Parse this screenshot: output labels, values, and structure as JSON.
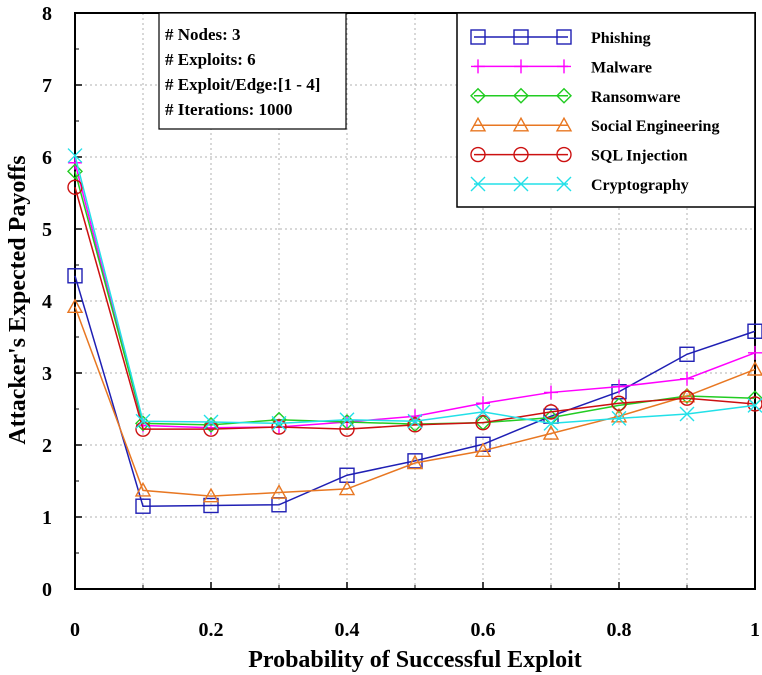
{
  "chart_data": {
    "type": "line",
    "xlabel": "Probability of Successful Exploit",
    "ylabel": "Attacker's Expected Payoffs",
    "xlim": [
      0,
      1
    ],
    "ylim": [
      0,
      8
    ],
    "x": [
      0,
      0.1,
      0.2,
      0.3,
      0.4,
      0.5,
      0.6,
      0.7,
      0.8,
      0.9,
      1.0
    ],
    "x_ticks": [
      0,
      0.2,
      0.4,
      0.6,
      0.8,
      1
    ],
    "x_tick_labels": [
      "0",
      "0.2",
      "0.4",
      "0.6",
      "0.8",
      "1"
    ],
    "y_ticks": [
      0,
      1,
      2,
      3,
      4,
      5,
      6,
      7,
      8
    ],
    "y_tick_labels": [
      "0",
      "1",
      "2",
      "3",
      "4",
      "5",
      "6",
      "7",
      "8"
    ],
    "grid": true,
    "legend_position": "top-right",
    "annotation_lines": [
      "# Nodes: 3",
      "# Exploits: 6",
      "# Exploit/Edge:[1 - 4]",
      "# Iterations: 1000"
    ],
    "series": [
      {
        "name": "Phishing",
        "color": "#1f1fb4",
        "marker": "square",
        "values": [
          4.35,
          1.15,
          1.16,
          1.17,
          1.58,
          1.78,
          2.01,
          2.4,
          2.74,
          3.26,
          3.58
        ]
      },
      {
        "name": "Malware",
        "color": "#ff00ff",
        "marker": "plus",
        "values": [
          5.92,
          2.27,
          2.24,
          2.25,
          2.32,
          2.4,
          2.58,
          2.73,
          2.81,
          2.92,
          3.28
        ]
      },
      {
        "name": "Ransomware",
        "color": "#22cc22",
        "marker": "diamond",
        "values": [
          5.8,
          2.3,
          2.28,
          2.35,
          2.32,
          2.29,
          2.31,
          2.38,
          2.55,
          2.68,
          2.65
        ]
      },
      {
        "name": "Social Engineering",
        "color": "#e87722",
        "marker": "triangle",
        "values": [
          3.92,
          1.37,
          1.29,
          1.34,
          1.39,
          1.75,
          1.92,
          2.16,
          2.4,
          2.68,
          3.05
        ]
      },
      {
        "name": "SQL Injection",
        "color": "#cc1010",
        "marker": "circle",
        "values": [
          5.58,
          2.22,
          2.22,
          2.25,
          2.22,
          2.28,
          2.31,
          2.46,
          2.58,
          2.65,
          2.57
        ]
      },
      {
        "name": "Cryptography",
        "color": "#22e0e8",
        "marker": "x",
        "values": [
          6.02,
          2.33,
          2.32,
          2.3,
          2.35,
          2.33,
          2.46,
          2.3,
          2.37,
          2.43,
          2.55
        ]
      }
    ]
  }
}
